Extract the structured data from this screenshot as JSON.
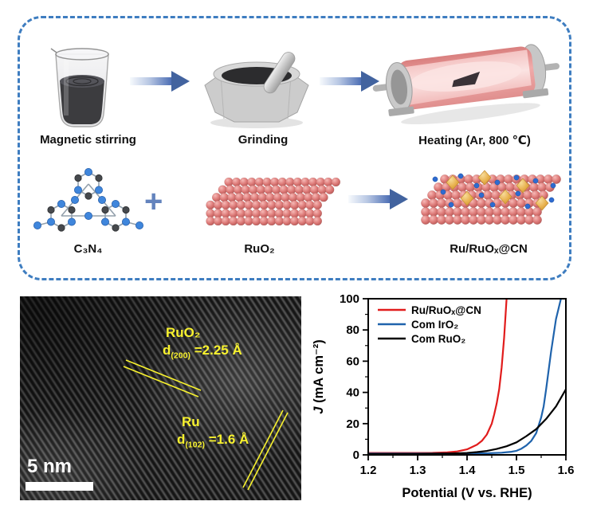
{
  "figure": {
    "background": "#ffffff",
    "scheme": {
      "border_color": "#3e7dc0",
      "arrow_color": "#4a6cb3",
      "steps": [
        {
          "label": "Magnetic stirring"
        },
        {
          "label": "Grinding"
        },
        {
          "label": "Heating (Ar, 800 ℃)"
        }
      ],
      "reaction": {
        "reactant1": "C₃N₄",
        "plus": "+",
        "reactant2": "RuO₂",
        "product": "Ru/RuOₓ@CN"
      }
    },
    "tem": {
      "annotation_color": "#f8f22e",
      "annotations": [
        {
          "phase": "RuO₂",
          "d_base": "d",
          "d_sub": "(200)",
          "d_value": " =2.25 Å"
        },
        {
          "phase": "Ru",
          "d_base": "d",
          "d_sub": "(102)",
          "d_value": " =1.6 Å"
        }
      ],
      "scalebar_label": "5 nm"
    }
  },
  "chart_data": {
    "type": "line",
    "title": "",
    "xlabel": "Potential (V vs. RHE)",
    "ylabel": "J (mA cm⁻²)",
    "ylabel_parts": {
      "italic": "J",
      "rest": " (mA cm⁻²)"
    },
    "xlim": [
      1.2,
      1.6
    ],
    "ylim": [
      0,
      100
    ],
    "xticks": [
      1.2,
      1.3,
      1.4,
      1.5,
      1.6
    ],
    "yticks": [
      0,
      20,
      40,
      60,
      80,
      100
    ],
    "x_minor_step": 0.05,
    "y_minor_step": 10,
    "grid": false,
    "legend_position": "top-left",
    "series": [
      {
        "name": "Ru/RuOₓ@CN",
        "color": "#e11c1c",
        "x": [
          1.2,
          1.25,
          1.3,
          1.33,
          1.36,
          1.38,
          1.4,
          1.42,
          1.43,
          1.44,
          1.45,
          1.455,
          1.46,
          1.465,
          1.47,
          1.475,
          1.48
        ],
        "y": [
          1.2,
          1.2,
          1.2,
          1.3,
          1.6,
          2.2,
          3.5,
          6.5,
          9,
          13,
          20,
          26,
          33,
          42,
          56,
          75,
          100
        ]
      },
      {
        "name": "Com IrO₂",
        "color": "#1f63ac",
        "x": [
          1.2,
          1.3,
          1.4,
          1.44,
          1.47,
          1.49,
          1.5,
          1.51,
          1.52,
          1.53,
          1.54,
          1.55,
          1.555,
          1.56,
          1.57,
          1.58,
          1.59
        ],
        "y": [
          0.8,
          0.8,
          0.9,
          1.0,
          1.4,
          2.0,
          2.6,
          4,
          6,
          9,
          14,
          24,
          31,
          42,
          66,
          87,
          100
        ]
      },
      {
        "name": "Com RuO₂",
        "color": "#000000",
        "x": [
          1.2,
          1.3,
          1.36,
          1.4,
          1.42,
          1.44,
          1.46,
          1.48,
          1.5,
          1.52,
          1.54,
          1.56,
          1.58,
          1.6
        ],
        "y": [
          0.5,
          0.6,
          0.8,
          1.2,
          1.8,
          2.5,
          3.8,
          5.5,
          8,
          12,
          16.5,
          23,
          31,
          42
        ]
      }
    ]
  }
}
